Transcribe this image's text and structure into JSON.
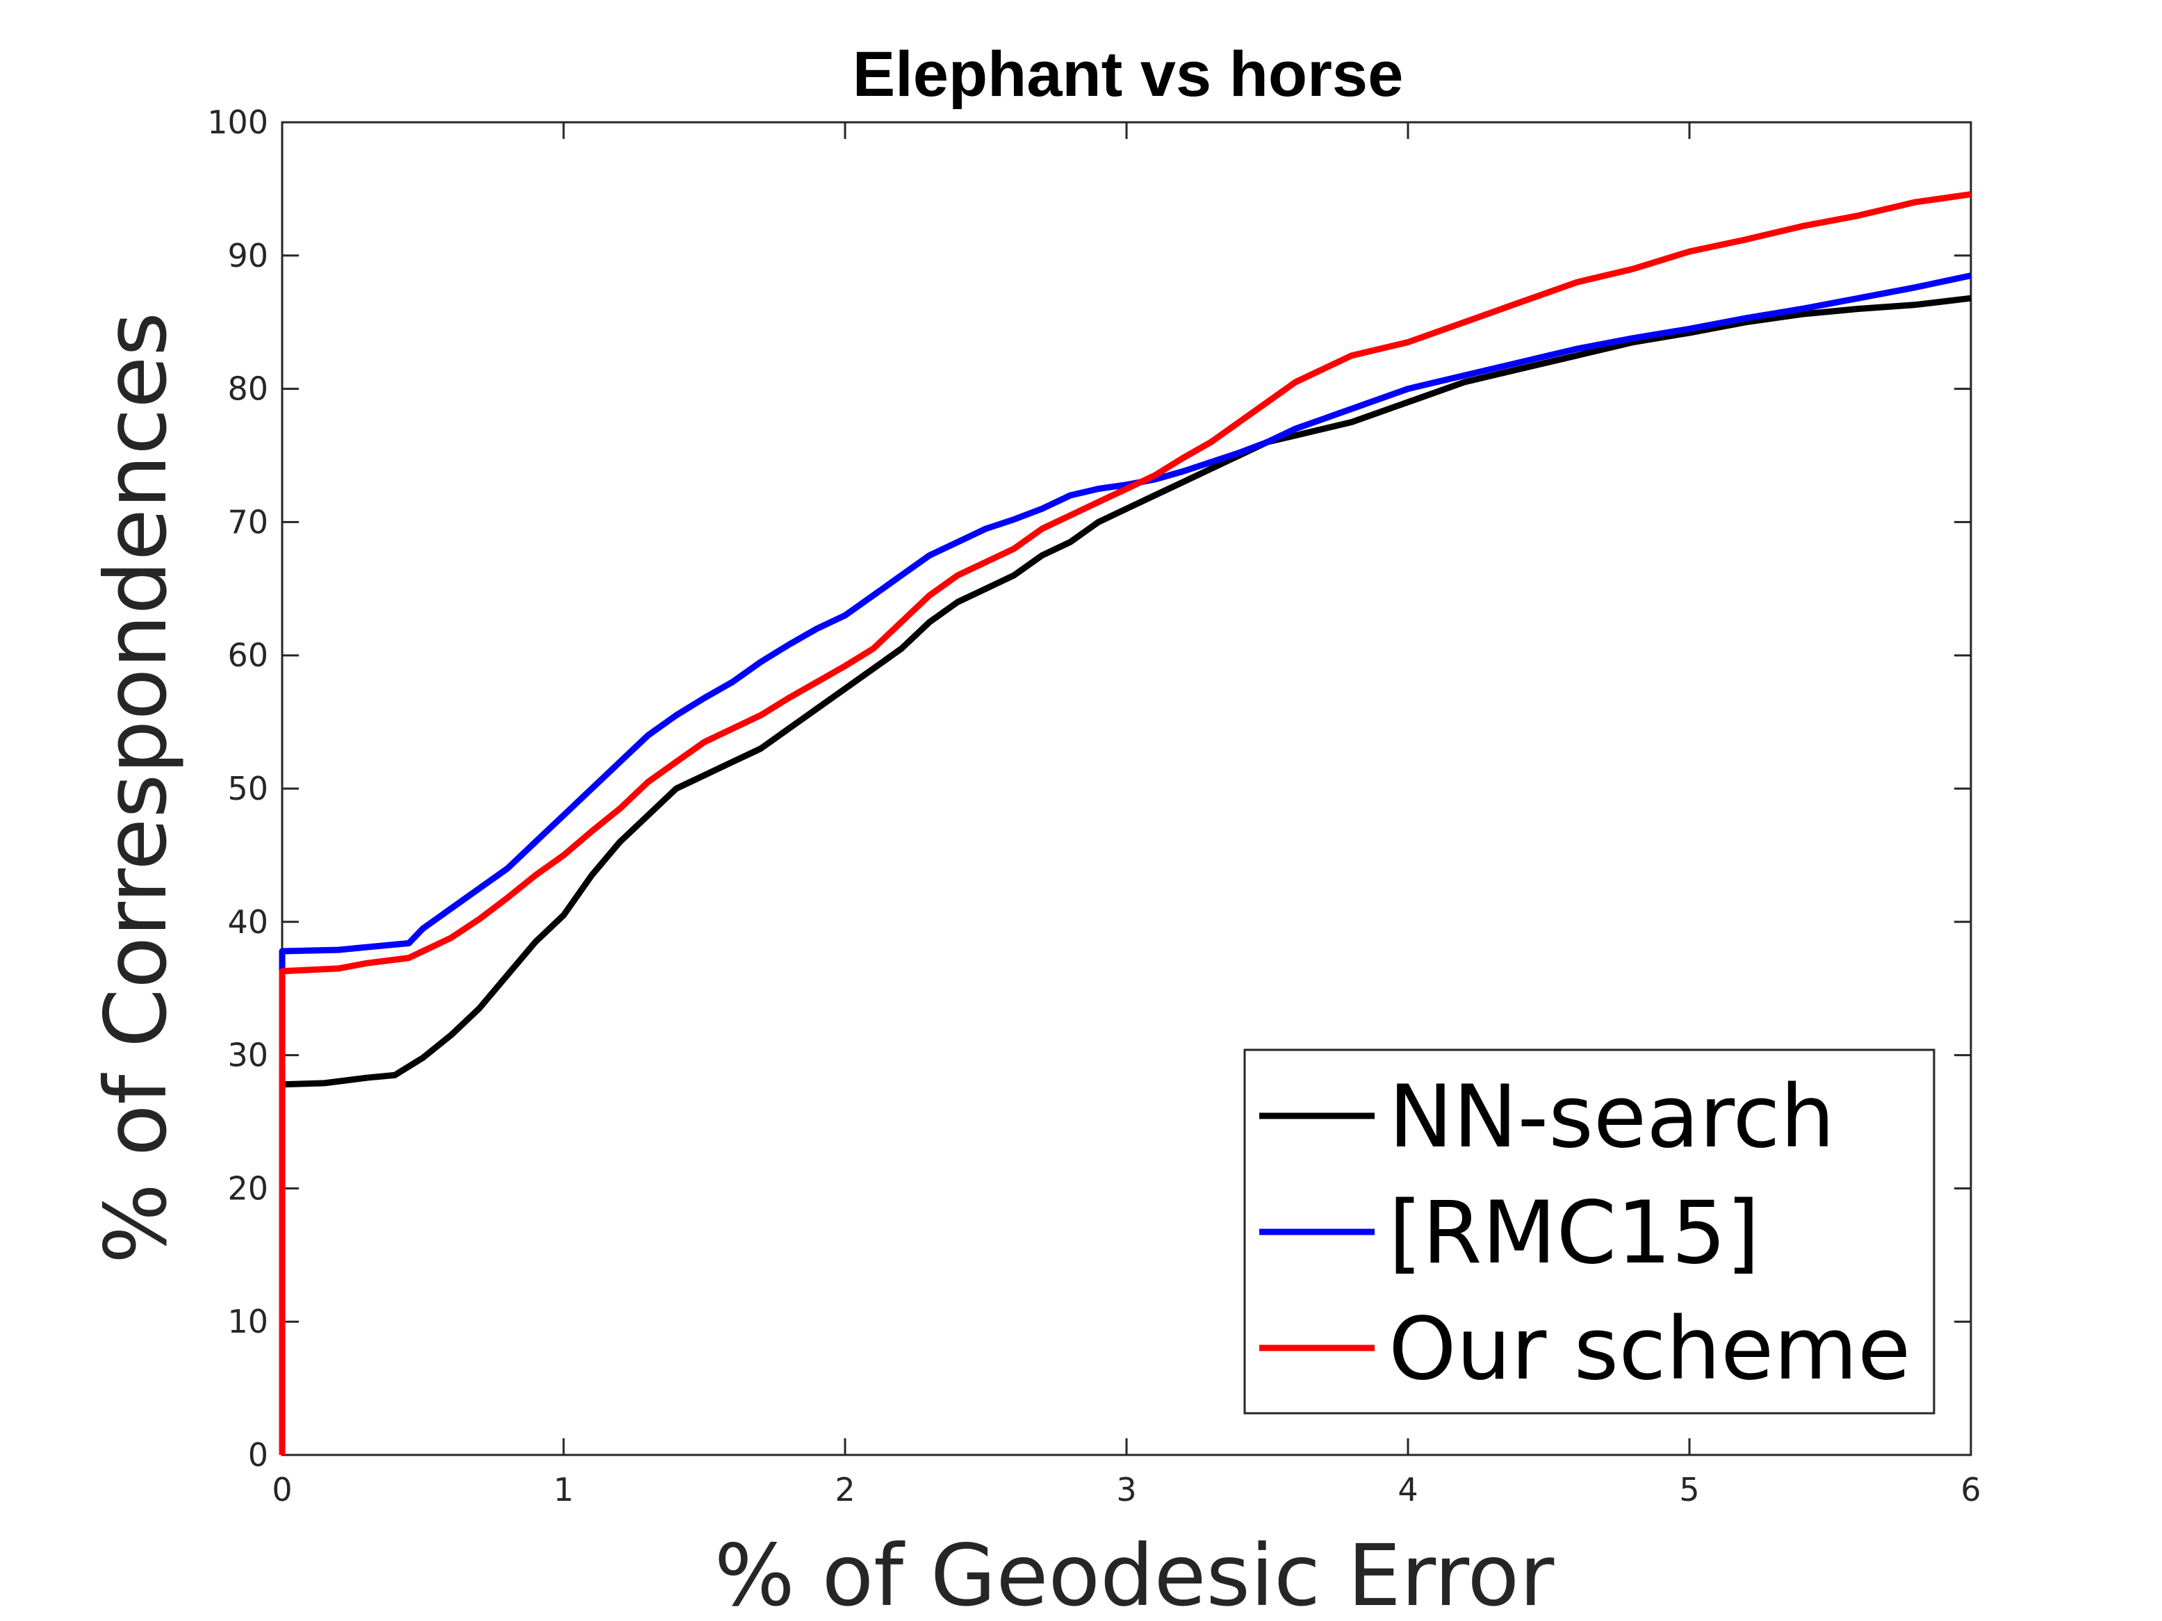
{
  "chart_data": {
    "type": "line",
    "title": "Elephant vs horse",
    "xlabel": "% of Geodesic Error",
    "ylabel": "% of Correspondences",
    "xlim": [
      0,
      6
    ],
    "ylim": [
      0,
      100
    ],
    "xticks": [
      "0",
      "1",
      "2",
      "3",
      "4",
      "5",
      "6"
    ],
    "yticks": [
      "0",
      "10",
      "20",
      "30",
      "40",
      "50",
      "60",
      "70",
      "80",
      "90",
      "100"
    ],
    "grid": false,
    "legend_position": "bottom-right",
    "series": [
      {
        "name": "NN-search",
        "color": "#000000",
        "x": [
          0,
          0,
          0.15,
          0.3,
          0.4,
          0.5,
          0.6,
          0.7,
          0.8,
          0.9,
          1.0,
          1.1,
          1.2,
          1.3,
          1.4,
          1.5,
          1.6,
          1.7,
          1.8,
          1.9,
          2.0,
          2.1,
          2.2,
          2.3,
          2.4,
          2.5,
          2.6,
          2.7,
          2.8,
          2.9,
          3.0,
          3.1,
          3.2,
          3.3,
          3.4,
          3.5,
          3.6,
          3.8,
          4.0,
          4.2,
          4.4,
          4.6,
          4.8,
          5.0,
          5.2,
          5.4,
          5.6,
          5.8,
          6.0
        ],
        "y": [
          0,
          27.8,
          27.9,
          28.3,
          28.5,
          29.8,
          31.5,
          33.5,
          36.0,
          38.5,
          40.5,
          43.5,
          46.0,
          48.0,
          50.0,
          51.0,
          52.0,
          53.0,
          54.5,
          56.0,
          57.5,
          59.0,
          60.5,
          62.5,
          64.0,
          65.0,
          66.0,
          67.5,
          68.5,
          70.0,
          71.0,
          72.0,
          73.0,
          74.0,
          75.0,
          76.0,
          76.5,
          77.5,
          79.0,
          80.5,
          81.5,
          82.5,
          83.5,
          84.2,
          85.0,
          85.6,
          86.0,
          86.3,
          86.8
        ]
      },
      {
        "name": "[RMC15]",
        "color": "#0000ff",
        "x": [
          0,
          0,
          0.2,
          0.3,
          0.45,
          0.5,
          0.6,
          0.7,
          0.8,
          0.9,
          1.0,
          1.1,
          1.2,
          1.3,
          1.4,
          1.5,
          1.6,
          1.7,
          1.8,
          1.9,
          2.0,
          2.1,
          2.2,
          2.3,
          2.4,
          2.5,
          2.6,
          2.7,
          2.8,
          2.9,
          3.0,
          3.1,
          3.2,
          3.3,
          3.4,
          3.5,
          3.6,
          3.8,
          4.0,
          4.2,
          4.4,
          4.6,
          4.8,
          5.0,
          5.2,
          5.4,
          5.6,
          5.8,
          6.0
        ],
        "y": [
          0,
          37.8,
          37.9,
          38.1,
          38.4,
          39.5,
          41.0,
          42.5,
          44.0,
          46.0,
          48.0,
          50.0,
          52.0,
          54.0,
          55.5,
          56.8,
          58.0,
          59.5,
          60.8,
          62.0,
          63.0,
          64.5,
          66.0,
          67.5,
          68.5,
          69.5,
          70.2,
          71.0,
          72.0,
          72.5,
          72.8,
          73.2,
          73.8,
          74.5,
          75.2,
          76.0,
          77.0,
          78.5,
          80.0,
          81.0,
          82.0,
          83.0,
          83.8,
          84.5,
          85.3,
          86.0,
          86.8,
          87.6,
          88.5
        ]
      },
      {
        "name": "Our scheme",
        "color": "#ff0000",
        "x": [
          0,
          0,
          0.2,
          0.3,
          0.45,
          0.5,
          0.6,
          0.7,
          0.8,
          0.9,
          1.0,
          1.1,
          1.2,
          1.3,
          1.4,
          1.5,
          1.6,
          1.7,
          1.8,
          1.9,
          2.0,
          2.1,
          2.2,
          2.3,
          2.4,
          2.5,
          2.6,
          2.7,
          2.8,
          2.9,
          3.0,
          3.1,
          3.2,
          3.3,
          3.4,
          3.5,
          3.6,
          3.8,
          4.0,
          4.2,
          4.4,
          4.6,
          4.8,
          5.0,
          5.2,
          5.4,
          5.6,
          5.8,
          6.0
        ],
        "y": [
          0,
          36.3,
          36.5,
          36.9,
          37.3,
          37.8,
          38.8,
          40.2,
          41.8,
          43.5,
          45.0,
          46.8,
          48.5,
          50.5,
          52.0,
          53.5,
          54.5,
          55.5,
          56.8,
          58.0,
          59.2,
          60.5,
          62.5,
          64.5,
          66.0,
          67.0,
          68.0,
          69.5,
          70.5,
          71.5,
          72.5,
          73.5,
          74.8,
          76.0,
          77.5,
          79.0,
          80.5,
          82.5,
          83.5,
          85.0,
          86.5,
          88.0,
          89.0,
          90.3,
          91.2,
          92.2,
          93.0,
          94.0,
          94.6
        ]
      }
    ]
  }
}
